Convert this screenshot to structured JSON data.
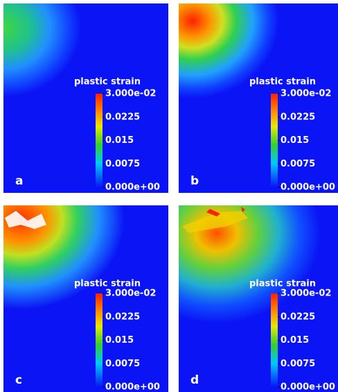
{
  "panels": [
    {
      "label": "a",
      "colorbar": {
        "title": "plastic strain",
        "ticks": [
          "3.000e-02",
          "0.0225",
          "0.015",
          "0.0075",
          "0.000e+00"
        ]
      }
    },
    {
      "label": "b",
      "colorbar": {
        "title": "plastic strain",
        "ticks": [
          "3.000e-02",
          "0.0225",
          "0.015",
          "0.0075",
          "0.000e+00"
        ]
      }
    },
    {
      "label": "c",
      "colorbar": {
        "title": "plastic strain",
        "ticks": [
          "3.000e-02",
          "0.0225",
          "0.015",
          "0.0075",
          "0.000e+00"
        ]
      }
    },
    {
      "label": "d",
      "colorbar": {
        "title": "plastic strain",
        "ticks": [
          "3.000e-02",
          "0.0225",
          "0.015",
          "0.0075",
          "0.000e+00"
        ]
      }
    }
  ]
}
